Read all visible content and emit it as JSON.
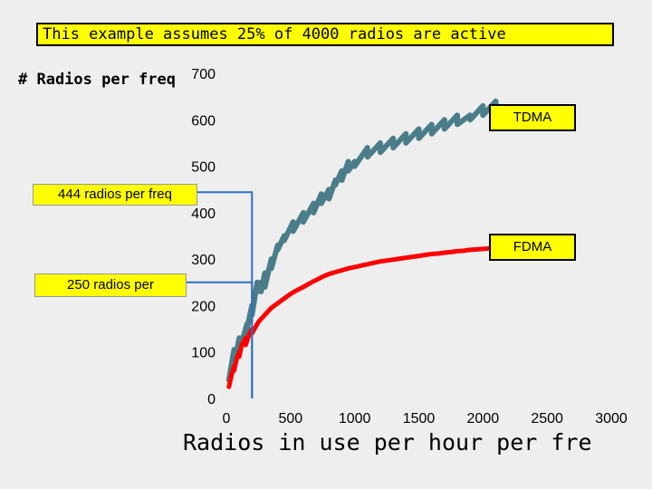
{
  "banner": "This example assumes 25% of 4000 radios are active",
  "chart_data": {
    "type": "line",
    "title": "",
    "xlabel": "Radios in use per hour per fre",
    "ylabel": "# Radios per freq",
    "xlim": [
      0,
      3000
    ],
    "ylim": [
      0,
      700
    ],
    "xticks": [
      0,
      500,
      1000,
      1500,
      2000,
      2500,
      3000
    ],
    "yticks": [
      0,
      100,
      200,
      300,
      400,
      500,
      600,
      700
    ],
    "grid": false,
    "series": [
      {
        "name": "TDMA",
        "color": "#4a7d89",
        "x": [
          20,
          60,
          60,
          100,
          100,
          120,
          120,
          160,
          160,
          200,
          200,
          240,
          240,
          270,
          270,
          300,
          300,
          350,
          350,
          400,
          400,
          450,
          450,
          520,
          520,
          600,
          600,
          680,
          680,
          740,
          740,
          800,
          800,
          850,
          850,
          900,
          900,
          950,
          950,
          1000,
          1000,
          1100,
          1100,
          1200,
          1200,
          1300,
          1300,
          1400,
          1400,
          1500,
          1500,
          1600,
          1600,
          1700,
          1700,
          1800,
          1800,
          1900,
          1900,
          2000,
          2000,
          2100,
          2100,
          2200
        ],
        "y": [
          40,
          105,
          70,
          130,
          120,
          130,
          120,
          160,
          150,
          200,
          180,
          250,
          230,
          250,
          230,
          270,
          240,
          300,
          280,
          330,
          320,
          350,
          340,
          380,
          360,
          400,
          380,
          420,
          400,
          440,
          420,
          450,
          430,
          470,
          460,
          490,
          470,
          510,
          490,
          510,
          500,
          540,
          520,
          550,
          530,
          560,
          540,
          570,
          550,
          580,
          560,
          590,
          570,
          600,
          580,
          610,
          590,
          610,
          600,
          630,
          610,
          640,
          620,
          600
        ]
      },
      {
        "name": "FDMA",
        "color": "#ff0000",
        "x": [
          20,
          40,
          60,
          60,
          80,
          100,
          100,
          120,
          150,
          150,
          180,
          200,
          200,
          250,
          300,
          350,
          400,
          450,
          500,
          550,
          600,
          650,
          700,
          750,
          800,
          850,
          900,
          950,
          1000,
          1050,
          1100,
          1150,
          1200,
          1250,
          1300,
          1350,
          1400,
          1450,
          1500,
          1550,
          1600,
          1650,
          1700,
          1750,
          1800,
          1850,
          1900,
          1950,
          2000,
          2050,
          2100,
          2150,
          2200
        ],
        "y": [
          25,
          50,
          70,
          60,
          85,
          100,
          90,
          115,
          130,
          115,
          140,
          150,
          140,
          165,
          180,
          195,
          205,
          215,
          225,
          233,
          240,
          248,
          255,
          262,
          268,
          272,
          276,
          280,
          283,
          286,
          289,
          292,
          295,
          297,
          299,
          301,
          303,
          305,
          307,
          309,
          311,
          312,
          314,
          315,
          317,
          318,
          320,
          321,
          322,
          323,
          325,
          326,
          327
        ]
      }
    ],
    "annotations": [
      {
        "text": "444 radios per freq",
        "x": 200,
        "y": 444
      },
      {
        "text": "250 radios per",
        "x": 200,
        "y": 250
      }
    ]
  }
}
